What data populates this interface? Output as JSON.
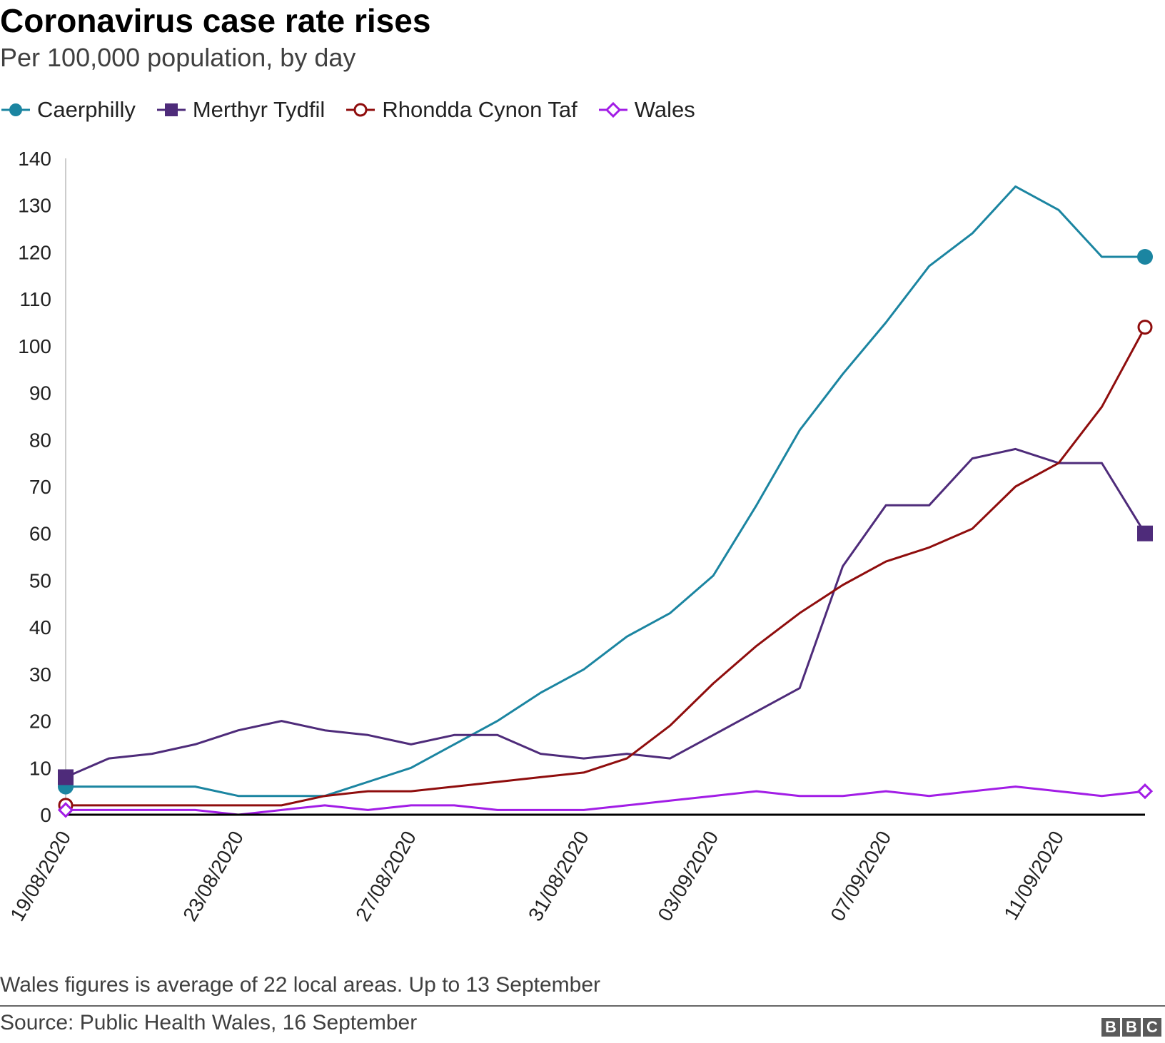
{
  "chart_data": {
    "type": "line",
    "title": "Coronavirus case rate rises",
    "subtitle": "Per 100,000 population, by day",
    "xlabel": "",
    "ylabel": "",
    "ylim": [
      0,
      140
    ],
    "yticks": [
      "0",
      "10",
      "20",
      "30",
      "40",
      "50",
      "60",
      "70",
      "80",
      "90",
      "100",
      "110",
      "120",
      "130",
      "140"
    ],
    "x": [
      "19/08/2020",
      "20/08/2020",
      "21/08/2020",
      "22/08/2020",
      "23/08/2020",
      "24/08/2020",
      "25/08/2020",
      "26/08/2020",
      "27/08/2020",
      "28/08/2020",
      "29/08/2020",
      "30/08/2020",
      "31/08/2020",
      "01/09/2020",
      "02/09/2020",
      "03/09/2020",
      "04/09/2020",
      "05/09/2020",
      "06/09/2020",
      "07/09/2020",
      "08/09/2020",
      "09/09/2020",
      "10/09/2020",
      "11/09/2020",
      "12/09/2020",
      "13/09/2020"
    ],
    "xtick_labels": [
      "19/08/2020",
      "23/08/2020",
      "27/08/2020",
      "31/08/2020",
      "03/09/2020",
      "07/09/2020",
      "11/09/2020"
    ],
    "series": [
      {
        "name": "Caerphilly",
        "color": "#1b85a1",
        "marker": "circle-filled",
        "values": [
          6,
          6,
          6,
          6,
          4,
          4,
          4,
          7,
          10,
          15,
          20,
          26,
          31,
          38,
          43,
          51,
          66,
          82,
          94,
          105,
          117,
          124,
          134,
          129,
          119,
          119
        ]
      },
      {
        "name": "Merthyr Tydfil",
        "color": "#4e2b7a",
        "marker": "square-filled",
        "values": [
          8,
          12,
          13,
          15,
          18,
          20,
          18,
          17,
          15,
          17,
          17,
          13,
          12,
          13,
          12,
          17,
          22,
          27,
          53,
          66,
          66,
          76,
          78,
          75,
          75,
          60
        ]
      },
      {
        "name": "Rhondda Cynon Taf",
        "color": "#8f0d0d",
        "marker": "circle-open",
        "values": [
          2,
          2,
          2,
          2,
          2,
          2,
          4,
          5,
          5,
          6,
          7,
          8,
          9,
          12,
          19,
          28,
          36,
          43,
          49,
          54,
          57,
          61,
          70,
          75,
          87,
          104
        ]
      },
      {
        "name": "Wales",
        "color": "#a21de6",
        "marker": "diamond-open",
        "values": [
          1,
          1,
          1,
          1,
          0,
          1,
          2,
          1,
          2,
          2,
          1,
          1,
          1,
          2,
          3,
          4,
          5,
          4,
          4,
          5,
          4,
          5,
          6,
          5,
          4,
          5
        ]
      }
    ],
    "legend_position": "top-left",
    "grid": false
  },
  "footer": {
    "note": "Wales figures is average of 22 local areas. Up to 13 September",
    "source": "Source: Public Health Wales, 16 September",
    "logo": [
      "B",
      "B",
      "C"
    ]
  }
}
